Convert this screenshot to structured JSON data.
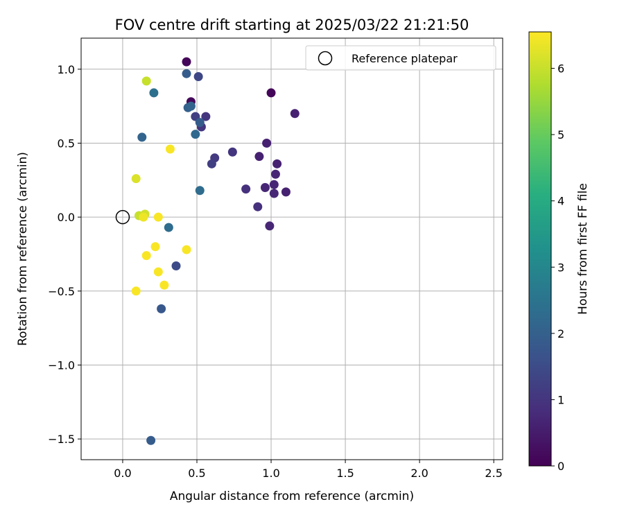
{
  "chart_data": {
    "type": "scatter",
    "title": "FOV centre drift starting at 2025/03/22 21:21:50",
    "xlabel": "Angular distance from reference (arcmin)",
    "ylabel": "Rotation from reference (arcmin)",
    "xlim": [
      -0.28,
      2.56
    ],
    "ylim": [
      -1.64,
      1.21
    ],
    "xticks": [
      0.0,
      0.5,
      1.0,
      1.5,
      2.0,
      2.5
    ],
    "xtick_labels": [
      "0.0",
      "0.5",
      "1.0",
      "1.5",
      "2.0",
      "2.5"
    ],
    "yticks": [
      -1.5,
      -1.0,
      -0.5,
      0.0,
      0.5,
      1.0
    ],
    "ytick_labels": [
      "−1.5",
      "−1.0",
      "−0.5",
      "0.0",
      "0.5",
      "1.0"
    ],
    "grid": true,
    "legend": {
      "placement": "top-right",
      "entries": [
        "Reference platepar"
      ]
    },
    "reference_point": {
      "x": 0.0,
      "y": 0.0,
      "style": "hollow-circle"
    },
    "colorbar": {
      "label": "Hours from first FF file",
      "colormap": "viridis",
      "range": [
        0,
        6.55
      ],
      "ticks": [
        0,
        1,
        2,
        3,
        4,
        5,
        6
      ],
      "tick_labels": [
        "0",
        "1",
        "2",
        "3",
        "4",
        "5",
        "6"
      ]
    },
    "points": [
      {
        "x": 0.43,
        "y": 1.05,
        "h": 0.1
      },
      {
        "x": 1.0,
        "y": 0.84,
        "h": 0.1
      },
      {
        "x": 0.46,
        "y": 0.78,
        "h": 0.15
      },
      {
        "x": 1.16,
        "y": 0.7,
        "h": 0.6
      },
      {
        "x": 0.97,
        "y": 0.5,
        "h": 0.6
      },
      {
        "x": 0.92,
        "y": 0.41,
        "h": 0.6
      },
      {
        "x": 1.04,
        "y": 0.36,
        "h": 0.6
      },
      {
        "x": 1.03,
        "y": 0.29,
        "h": 0.7
      },
      {
        "x": 1.02,
        "y": 0.22,
        "h": 0.7
      },
      {
        "x": 1.1,
        "y": 0.17,
        "h": 0.6
      },
      {
        "x": 1.02,
        "y": 0.16,
        "h": 0.7
      },
      {
        "x": 0.96,
        "y": 0.2,
        "h": 0.7
      },
      {
        "x": 0.99,
        "y": -0.06,
        "h": 0.7
      },
      {
        "x": 0.91,
        "y": 0.07,
        "h": 0.9
      },
      {
        "x": 0.83,
        "y": 0.19,
        "h": 0.9
      },
      {
        "x": 0.74,
        "y": 0.44,
        "h": 1.0
      },
      {
        "x": 0.62,
        "y": 0.4,
        "h": 1.1
      },
      {
        "x": 0.6,
        "y": 0.36,
        "h": 1.2
      },
      {
        "x": 0.56,
        "y": 0.68,
        "h": 1.0
      },
      {
        "x": 0.53,
        "y": 0.61,
        "h": 1.0
      },
      {
        "x": 0.49,
        "y": 0.68,
        "h": 1.2
      },
      {
        "x": 0.51,
        "y": 0.95,
        "h": 1.4
      },
      {
        "x": 0.43,
        "y": 0.97,
        "h": 1.9
      },
      {
        "x": 0.52,
        "y": 0.64,
        "h": 1.9
      },
      {
        "x": 0.44,
        "y": 0.74,
        "h": 2.0
      },
      {
        "x": 0.46,
        "y": 0.75,
        "h": 2.1
      },
      {
        "x": 0.49,
        "y": 0.56,
        "h": 2.2
      },
      {
        "x": 0.52,
        "y": 0.18,
        "h": 2.3
      },
      {
        "x": 0.21,
        "y": 0.84,
        "h": 2.4
      },
      {
        "x": 0.13,
        "y": 0.54,
        "h": 2.1
      },
      {
        "x": 0.31,
        "y": -0.07,
        "h": 2.3
      },
      {
        "x": 0.36,
        "y": -0.33,
        "h": 1.5
      },
      {
        "x": 0.26,
        "y": -0.62,
        "h": 1.8
      },
      {
        "x": 0.19,
        "y": -1.51,
        "h": 1.9
      },
      {
        "x": 0.16,
        "y": 0.92,
        "h": 6.0
      },
      {
        "x": 0.09,
        "y": 0.26,
        "h": 6.2
      },
      {
        "x": 0.11,
        "y": 0.01,
        "h": 6.0
      },
      {
        "x": 0.15,
        "y": 0.02,
        "h": 6.1
      },
      {
        "x": 0.14,
        "y": 0.0,
        "h": 6.4
      },
      {
        "x": 0.32,
        "y": 0.46,
        "h": 6.5
      },
      {
        "x": 0.24,
        "y": 0.0,
        "h": 6.5
      },
      {
        "x": 0.22,
        "y": -0.2,
        "h": 6.5
      },
      {
        "x": 0.43,
        "y": -0.22,
        "h": 6.5
      },
      {
        "x": 0.16,
        "y": -0.26,
        "h": 6.5
      },
      {
        "x": 0.24,
        "y": -0.37,
        "h": 6.5
      },
      {
        "x": 0.28,
        "y": -0.46,
        "h": 6.5
      },
      {
        "x": 0.09,
        "y": -0.5,
        "h": 6.5
      }
    ]
  }
}
